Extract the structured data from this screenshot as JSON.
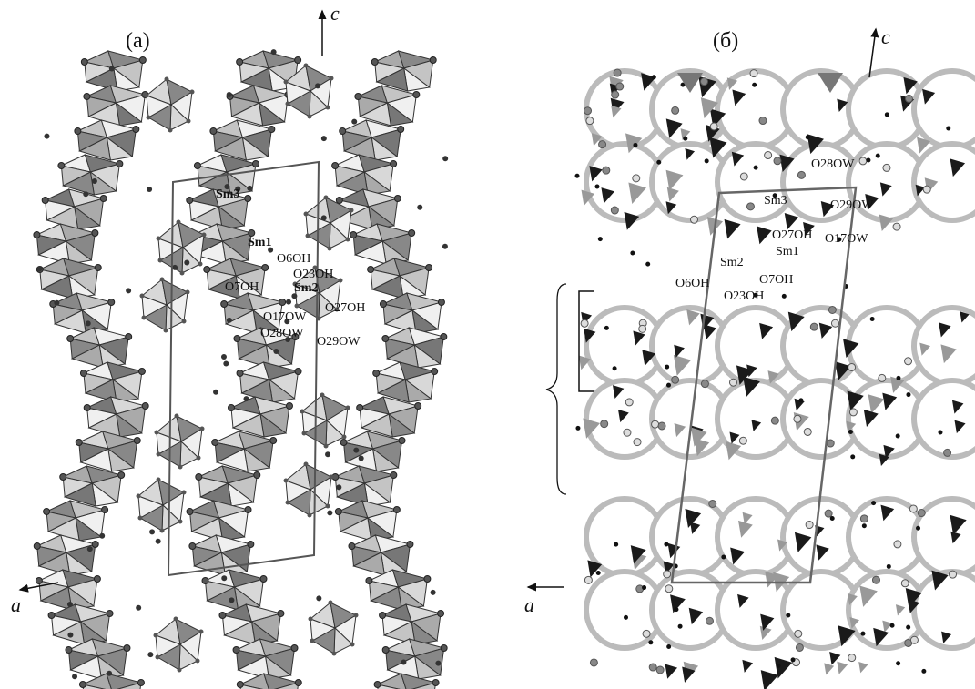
{
  "panels": [
    {
      "title": "(а)",
      "axis_c": "c",
      "axis_a": "a",
      "labels": [
        "Sm3",
        "Sm1",
        "O6OH",
        "O23OH",
        "Sm2",
        "O7OH",
        "O27OH",
        "O17OW",
        "O28OW",
        "O29OW"
      ]
    },
    {
      "title": "(б)",
      "axis_c": "c",
      "axis_a": "a",
      "labels": [
        "O28OW",
        "Sm3",
        "O29OW",
        "O27OH",
        "O17OW",
        "Sm1",
        "Sm2",
        "O6OH",
        "O7OH",
        "O23OH"
      ]
    }
  ]
}
